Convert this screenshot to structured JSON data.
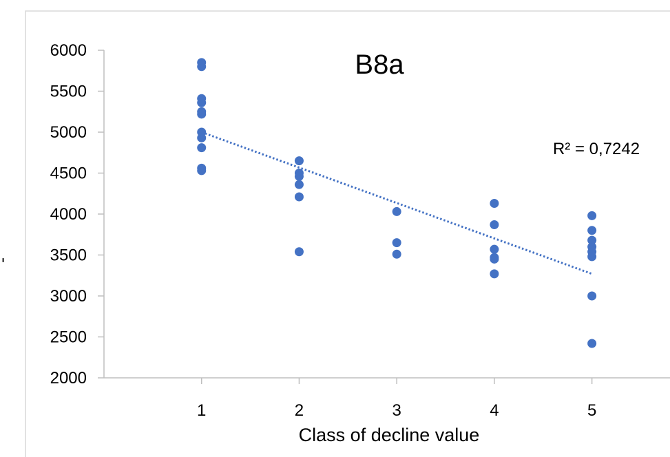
{
  "chart_data": {
    "type": "scatter",
    "title": "B8a",
    "xlabel": "Class of decline value",
    "ylabel": "",
    "xlim": [
      0,
      5.8
    ],
    "ylim": [
      2000,
      6000
    ],
    "x_ticks": [
      1,
      2,
      3,
      4,
      5
    ],
    "y_ticks": [
      2000,
      2500,
      3000,
      3500,
      4000,
      4500,
      5000,
      5500,
      6000
    ],
    "grid": false,
    "legend": "none",
    "colors": {
      "points": "#4472C4",
      "trendline": "#4472C4",
      "axis": "#BFBFBF",
      "frame": "#D9D9D9"
    },
    "series": [
      {
        "points": [
          {
            "x": 1,
            "y": 5850
          },
          {
            "x": 1,
            "y": 5800
          },
          {
            "x": 1,
            "y": 5410
          },
          {
            "x": 1,
            "y": 5360
          },
          {
            "x": 1,
            "y": 5250
          },
          {
            "x": 1,
            "y": 5220
          },
          {
            "x": 1,
            "y": 5000
          },
          {
            "x": 1,
            "y": 4930
          },
          {
            "x": 1,
            "y": 4810
          },
          {
            "x": 1,
            "y": 4560
          },
          {
            "x": 1,
            "y": 4530
          },
          {
            "x": 2,
            "y": 4650
          },
          {
            "x": 2,
            "y": 4500
          },
          {
            "x": 2,
            "y": 4460
          },
          {
            "x": 2,
            "y": 4360
          },
          {
            "x": 2,
            "y": 4210
          },
          {
            "x": 2,
            "y": 3540
          },
          {
            "x": 3,
            "y": 4030
          },
          {
            "x": 3,
            "y": 3650
          },
          {
            "x": 3,
            "y": 3510
          },
          {
            "x": 4,
            "y": 4130
          },
          {
            "x": 4,
            "y": 3870
          },
          {
            "x": 4,
            "y": 3570
          },
          {
            "x": 4,
            "y": 3470
          },
          {
            "x": 4,
            "y": 3450
          },
          {
            "x": 4,
            "y": 3270
          },
          {
            "x": 5,
            "y": 3980
          },
          {
            "x": 5,
            "y": 3800
          },
          {
            "x": 5,
            "y": 3680
          },
          {
            "x": 5,
            "y": 3600
          },
          {
            "x": 5,
            "y": 3540
          },
          {
            "x": 5,
            "y": 3480
          },
          {
            "x": 5,
            "y": 3000
          },
          {
            "x": 5,
            "y": 2420
          }
        ]
      }
    ],
    "trendline": {
      "type": "linear",
      "x_start": 1,
      "y_start": 5000,
      "x_end": 5,
      "y_end": 3270,
      "r2_label": "R² = 0,7242"
    },
    "left_edge_glyph": "-"
  }
}
